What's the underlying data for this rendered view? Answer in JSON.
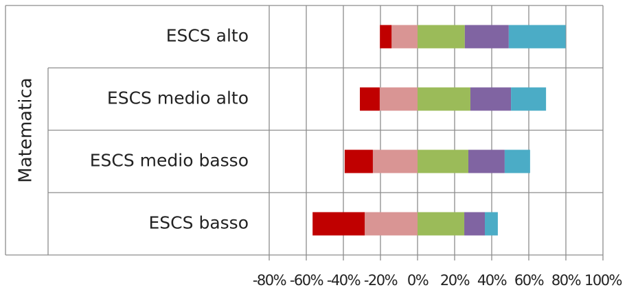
{
  "chart_data": {
    "type": "diverging_bar",
    "y_label": "Matematica",
    "categories": [
      "ESCS alto",
      "ESCS medio alto",
      "ESCS medio basso",
      "ESCS basso"
    ],
    "series": [
      {
        "color": "#d99594",
        "values": [
          -14,
          -20.4,
          -24.1,
          -28.5
        ]
      },
      {
        "color": "#c00000",
        "values": [
          -6.3,
          -10.7,
          -15.2,
          -28.1
        ]
      },
      {
        "color": "#9bbb59",
        "values": [
          25.5,
          28.5,
          27.4,
          25.2
        ]
      },
      {
        "color": "#8064a2",
        "values": [
          23.7,
          21.9,
          19.6,
          11.1
        ]
      },
      {
        "color": "#4bacc6",
        "values": [
          30.7,
          18.9,
          13.7,
          7.0
        ]
      }
    ],
    "xlim": [
      -80,
      100
    ],
    "xticks": [
      {
        "value": -80,
        "label": "-80%"
      },
      {
        "value": -60,
        "label": "-60%"
      },
      {
        "value": -40,
        "label": "-40%"
      },
      {
        "value": -20,
        "label": "-20%"
      },
      {
        "value": 0,
        "label": "0%"
      },
      {
        "value": 20,
        "label": "20%"
      },
      {
        "value": 40,
        "label": "40%"
      },
      {
        "value": 60,
        "label": "60%"
      },
      {
        "value": 80,
        "label": "80%"
      },
      {
        "value": 100,
        "label": "100%"
      }
    ],
    "grid": true
  }
}
